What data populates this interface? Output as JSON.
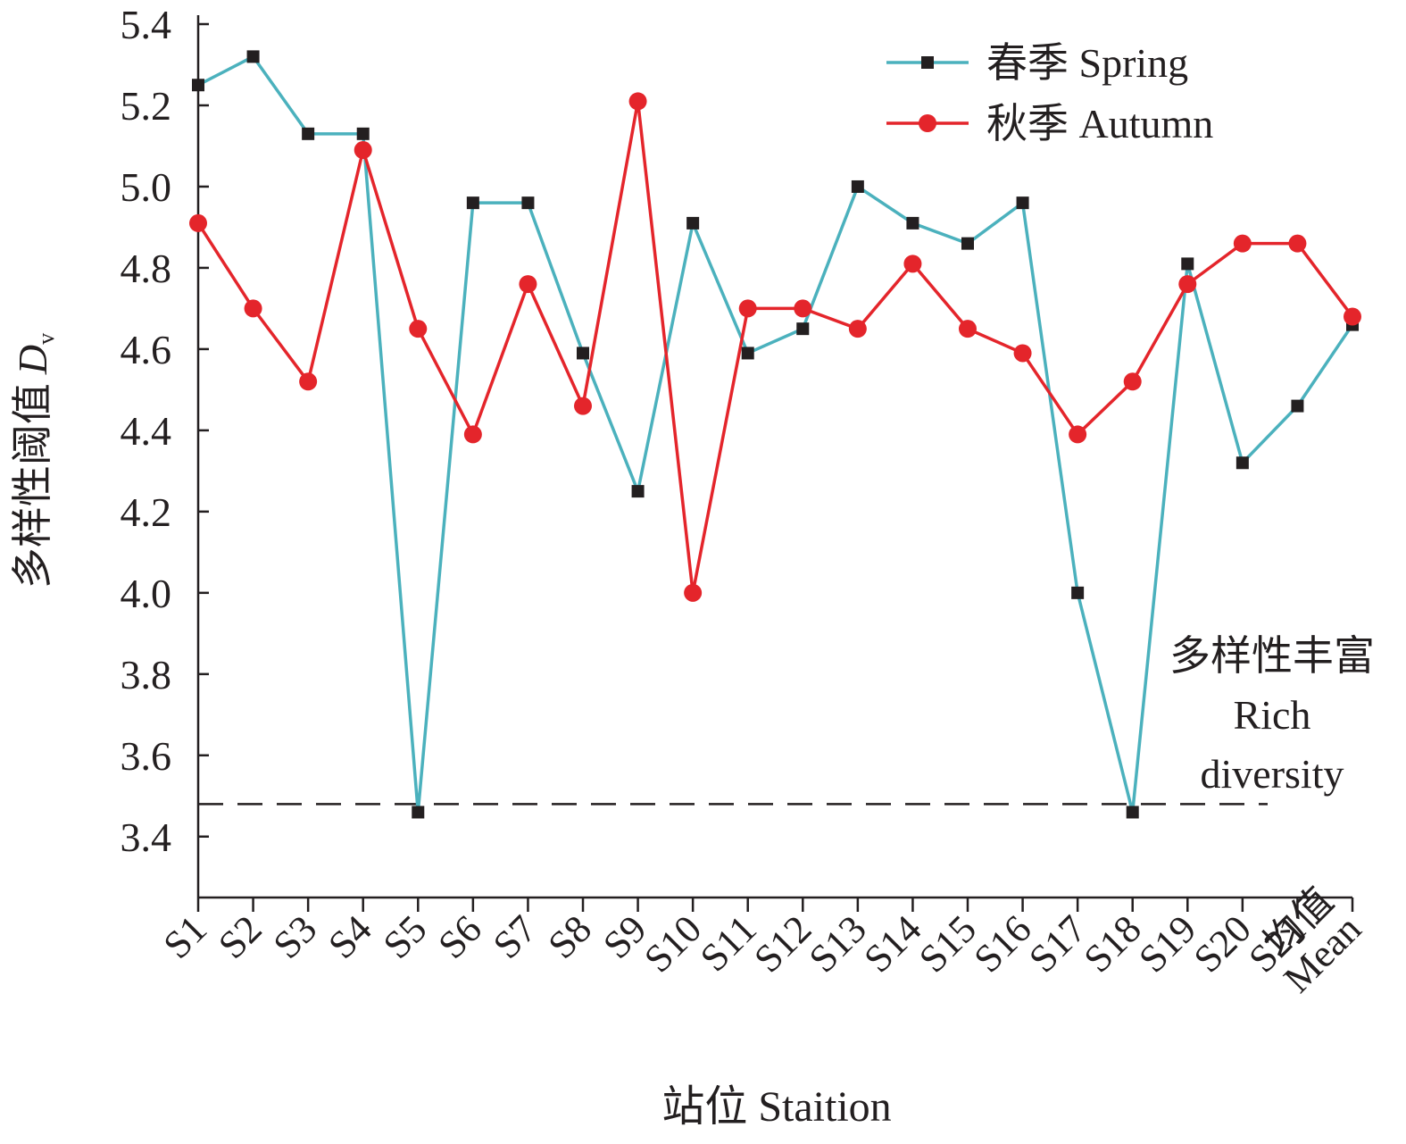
{
  "chart_data": {
    "type": "line",
    "x_label": "站位 Staition",
    "y_label": "多样性阈值",
    "y_label_symbol": "D",
    "y_label_subscript": "v",
    "categories": [
      "S1",
      "S2",
      "S3",
      "S4",
      "S5",
      "S6",
      "S7",
      "S8",
      "S9",
      "S10",
      "S11",
      "S12",
      "S13",
      "S14",
      "S15",
      "S16",
      "S17",
      "S18",
      "S19",
      "S20",
      "S21",
      "均值 Mean"
    ],
    "series": [
      {
        "name": "春季 Spring",
        "color": "#4bb1bd",
        "marker": "square",
        "values": [
          5.25,
          5.32,
          5.13,
          5.13,
          3.46,
          4.96,
          4.96,
          4.59,
          4.25,
          4.91,
          4.59,
          4.65,
          5.0,
          4.91,
          4.86,
          4.96,
          4.0,
          3.46,
          4.81,
          4.32,
          4.46,
          4.66
        ]
      },
      {
        "name": "秋季 Autumn",
        "color": "#e4252b",
        "marker": "circle",
        "values": [
          4.91,
          4.7,
          4.52,
          5.09,
          4.65,
          4.39,
          4.76,
          4.46,
          5.21,
          4.0,
          4.7,
          4.7,
          4.65,
          4.81,
          4.65,
          4.59,
          4.39,
          4.52,
          4.76,
          4.86,
          4.86,
          4.68
        ]
      }
    ],
    "threshold": 3.48,
    "annotation": [
      "多样性丰富",
      "Rich",
      "diversity"
    ],
    "ylim": [
      3.25,
      5.4
    ],
    "yticks": [
      3.4,
      3.6,
      3.8,
      {
        "value": 4,
        "label": "4.0"
      },
      4.2,
      4.4,
      4.6,
      4.8,
      {
        "value": 5,
        "label": "5.0"
      },
      5.2,
      5.4
    ],
    "legend": "upper right"
  }
}
